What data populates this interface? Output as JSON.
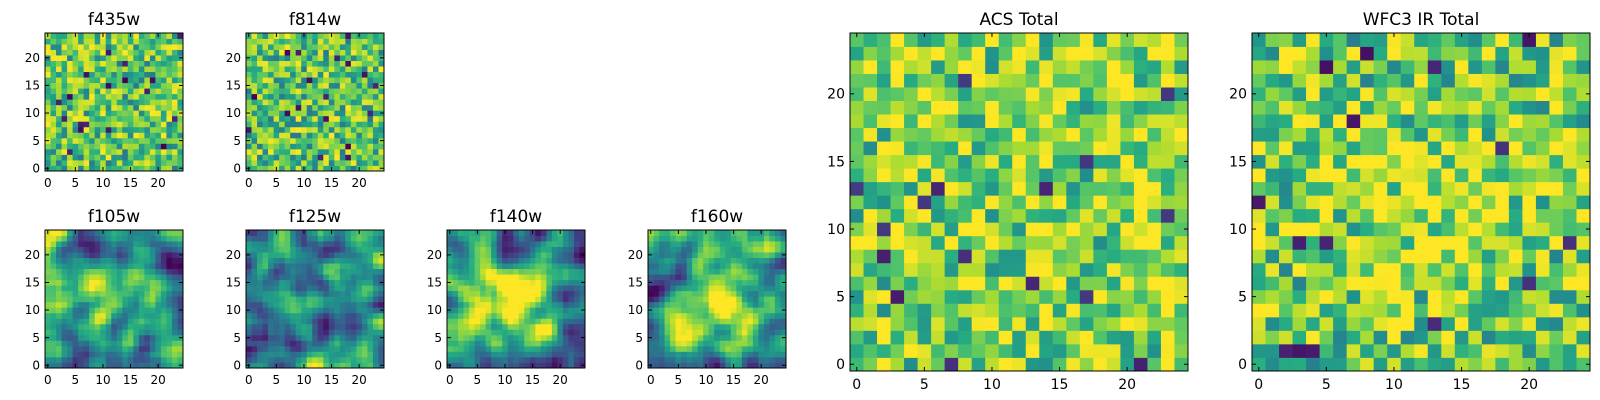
{
  "colormap": "viridis",
  "colormap_stops": [
    "#440154",
    "#3b528b",
    "#21918c",
    "#5ec962",
    "#fde725"
  ],
  "chart_data": [
    {
      "type": "heatmap",
      "title": "f435w",
      "grid_size": 25,
      "xticks": [
        0,
        5,
        10,
        15,
        20
      ],
      "yticks": [
        0,
        5,
        10,
        15,
        20
      ],
      "xlim": [
        -0.5,
        24.5
      ],
      "ylim": [
        -0.5,
        24.5
      ],
      "value_range": [
        0,
        1
      ],
      "values": "pixel noise field (25x25 grid), not individually legible"
    },
    {
      "type": "heatmap",
      "title": "f814w",
      "grid_size": 25,
      "xticks": [
        0,
        5,
        10,
        15,
        20
      ],
      "yticks": [
        0,
        5,
        10,
        15,
        20
      ],
      "xlim": [
        -0.5,
        24.5
      ],
      "ylim": [
        -0.5,
        24.5
      ],
      "value_range": [
        0,
        1
      ],
      "values": "pixel noise field (25x25 grid), not individually legible"
    },
    {
      "type": "heatmap",
      "title": "f105w",
      "grid_size": 25,
      "xticks": [
        0,
        5,
        10,
        15,
        20
      ],
      "yticks": [
        0,
        5,
        10,
        15,
        20
      ],
      "xlim": [
        -0.5,
        24.5
      ],
      "ylim": [
        -0.5,
        24.5
      ],
      "value_range": [
        0,
        1
      ],
      "values": "smoothed noise field (25x25 grid), brighter toward center"
    },
    {
      "type": "heatmap",
      "title": "f125w",
      "grid_size": 25,
      "xticks": [
        0,
        5,
        10,
        15,
        20
      ],
      "yticks": [
        0,
        5,
        10,
        15,
        20
      ],
      "xlim": [
        -0.5,
        24.5
      ],
      "ylim": [
        -0.5,
        24.5
      ],
      "value_range": [
        0,
        1
      ],
      "values": "smoothed noise field (25x25 grid)"
    },
    {
      "type": "heatmap",
      "title": "f140w",
      "grid_size": 25,
      "xticks": [
        0,
        5,
        10,
        15,
        20
      ],
      "yticks": [
        0,
        5,
        10,
        15,
        20
      ],
      "xlim": [
        -0.5,
        24.5
      ],
      "ylim": [
        -0.5,
        24.5
      ],
      "value_range": [
        0,
        1
      ],
      "values": "smoothed noise field (25x25 grid), bright blob near center"
    },
    {
      "type": "heatmap",
      "title": "f160w",
      "grid_size": 25,
      "xticks": [
        0,
        5,
        10,
        15,
        20
      ],
      "yticks": [
        0,
        5,
        10,
        15,
        20
      ],
      "xlim": [
        -0.5,
        24.5
      ],
      "ylim": [
        -0.5,
        24.5
      ],
      "value_range": [
        0,
        1
      ],
      "values": "smoothed noise field (25x25 grid), bright blob near center"
    },
    {
      "type": "heatmap",
      "title": "ACS Total",
      "grid_size": 25,
      "xticks": [
        0,
        5,
        10,
        15,
        20
      ],
      "yticks": [
        0,
        5,
        10,
        15,
        20
      ],
      "xlim": [
        -0.5,
        24.5
      ],
      "ylim": [
        -0.5,
        24.5
      ],
      "value_range": [
        0,
        1
      ],
      "values": "pixel noise field (25x25 grid), mostly green-yellow"
    },
    {
      "type": "heatmap",
      "title": "WFC3 IR Total",
      "grid_size": 25,
      "xticks": [
        0,
        5,
        10,
        15,
        20
      ],
      "yticks": [
        0,
        5,
        10,
        15,
        20
      ],
      "xlim": [
        -0.5,
        24.5
      ],
      "ylim": [
        -0.5,
        24.5
      ],
      "value_range": [
        0,
        1
      ],
      "values": "pixel noise field (25x25 grid), brighter toward center"
    }
  ]
}
